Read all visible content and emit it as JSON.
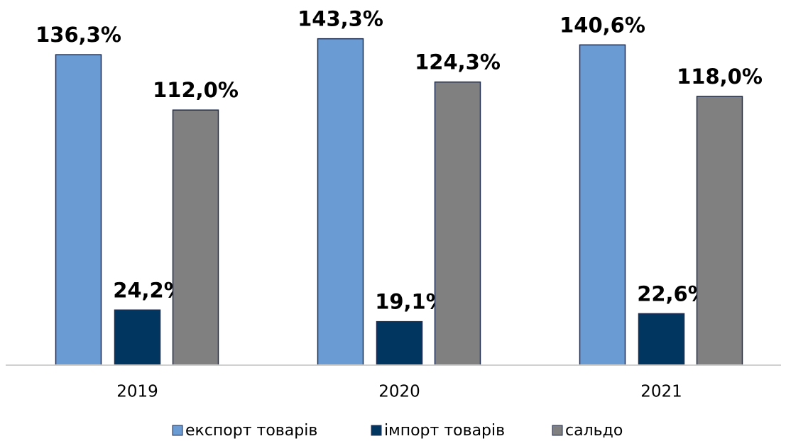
{
  "chart_data": {
    "type": "bar",
    "categories": [
      "2019",
      "2020",
      "2021"
    ],
    "series": [
      {
        "name": "експорт товарів",
        "color": "#6a9bd3",
        "values": [
          136.3,
          143.3,
          140.6
        ],
        "value_labels": [
          "136,3%",
          "143,3%",
          "140,6%"
        ]
      },
      {
        "name": "імпорт товарів",
        "color": "#003660",
        "values": [
          24.2,
          19.1,
          22.6
        ],
        "value_labels": [
          "24,2%",
          "19,1%",
          "22,6%"
        ]
      },
      {
        "name": "сальдо",
        "color": "#808080",
        "values": [
          112.0,
          124.3,
          118.0
        ],
        "value_labels": [
          "112,0%",
          "124,3%",
          "118,0%"
        ]
      }
    ],
    "ylim": [
      0,
      160
    ]
  }
}
